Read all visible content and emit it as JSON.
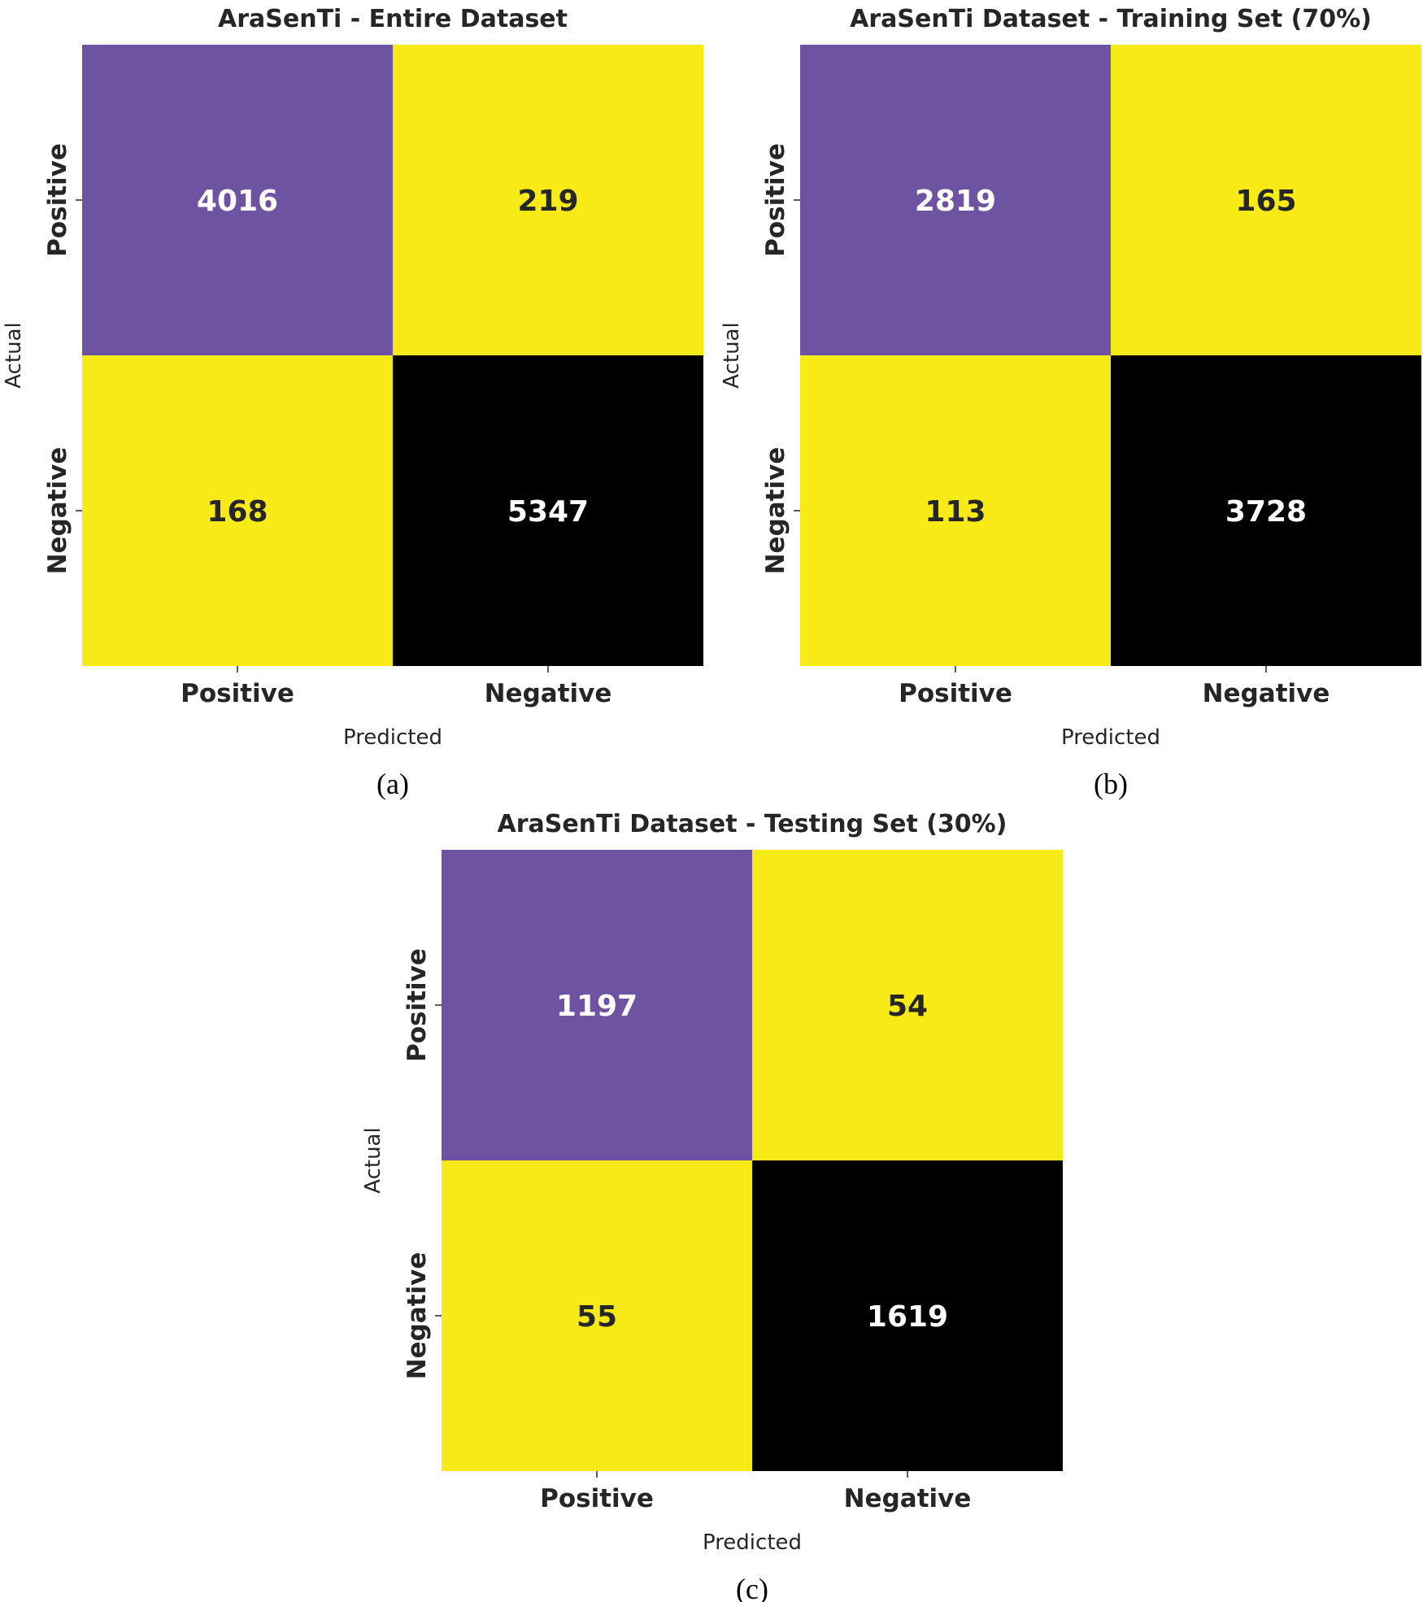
{
  "chart_data": [
    {
      "type": "heatmap",
      "caption": "(a)",
      "title": "AraSenTi - Entire Dataset",
      "xlabel": "Predicted",
      "ylabel": "Actual",
      "x_categories": [
        "Positive",
        "Negative"
      ],
      "y_categories": [
        "Positive",
        "Negative"
      ],
      "values": [
        [
          4016,
          219
        ],
        [
          168,
          5347
        ]
      ]
    },
    {
      "type": "heatmap",
      "caption": "(b)",
      "title": "AraSenTi Dataset - Training Set (70%)",
      "xlabel": "Predicted",
      "ylabel": "Actual",
      "x_categories": [
        "Positive",
        "Negative"
      ],
      "y_categories": [
        "Positive",
        "Negative"
      ],
      "values": [
        [
          2819,
          165
        ],
        [
          113,
          3728
        ]
      ]
    },
    {
      "type": "heatmap",
      "caption": "(c)",
      "title": "AraSenTi Dataset - Testing Set (30%)",
      "xlabel": "Predicted",
      "ylabel": "Actual",
      "x_categories": [
        "Positive",
        "Negative"
      ],
      "y_categories": [
        "Positive",
        "Negative"
      ],
      "values": [
        [
          1197,
          54
        ],
        [
          55,
          1619
        ]
      ]
    }
  ],
  "colors": {
    "true_positive": "#6f53a3",
    "misclassified": "#f7ea16",
    "true_negative": "#000000",
    "light_text": "#ffffff",
    "dark_text": "#262626"
  }
}
